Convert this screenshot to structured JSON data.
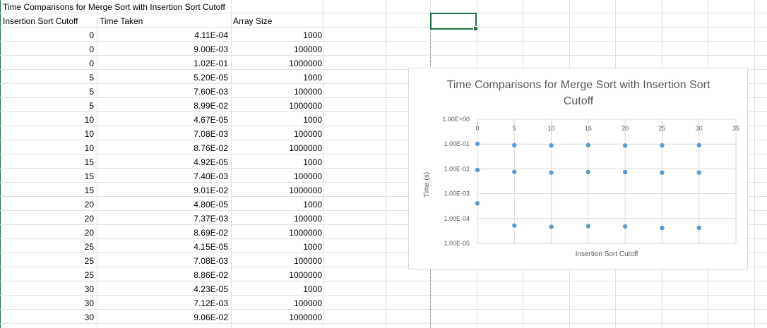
{
  "sheet": {
    "title": "Time Comparisons for Merge Sort with Insertion Sort Cutoff",
    "headers": [
      "Insertion Sort Cutoff",
      "Time Taken",
      "Array Size"
    ],
    "rows": [
      {
        "cutoff": "0",
        "time": "4.11E-04",
        "size": "1000"
      },
      {
        "cutoff": "0",
        "time": "9.00E-03",
        "size": "100000"
      },
      {
        "cutoff": "0",
        "time": "1.02E-01",
        "size": "1000000"
      },
      {
        "cutoff": "5",
        "time": "5.20E-05",
        "size": "1000"
      },
      {
        "cutoff": "5",
        "time": "7.60E-03",
        "size": "100000"
      },
      {
        "cutoff": "5",
        "time": "8.99E-02",
        "size": "1000000"
      },
      {
        "cutoff": "10",
        "time": "4.67E-05",
        "size": "1000"
      },
      {
        "cutoff": "10",
        "time": "7.08E-03",
        "size": "100000"
      },
      {
        "cutoff": "10",
        "time": "8.76E-02",
        "size": "1000000"
      },
      {
        "cutoff": "15",
        "time": "4.92E-05",
        "size": "1000"
      },
      {
        "cutoff": "15",
        "time": "7.40E-03",
        "size": "100000"
      },
      {
        "cutoff": "15",
        "time": "9.01E-02",
        "size": "1000000"
      },
      {
        "cutoff": "20",
        "time": "4.80E-05",
        "size": "1000"
      },
      {
        "cutoff": "20",
        "time": "7.37E-03",
        "size": "100000"
      },
      {
        "cutoff": "20",
        "time": "8.69E-02",
        "size": "1000000"
      },
      {
        "cutoff": "25",
        "time": "4.15E-05",
        "size": "1000"
      },
      {
        "cutoff": "25",
        "time": "7.08E-03",
        "size": "100000"
      },
      {
        "cutoff": "25",
        "time": "8.86E-02",
        "size": "1000000"
      },
      {
        "cutoff": "30",
        "time": "4.23E-05",
        "size": "1000"
      },
      {
        "cutoff": "30",
        "time": "7.12E-03",
        "size": "100000"
      },
      {
        "cutoff": "30",
        "time": "9.06E-02",
        "size": "1000000"
      }
    ]
  },
  "chart_data": {
    "type": "scatter",
    "title": "Time Comparisons for Merge Sort with Insertion Sort Cutoff",
    "xlabel": "Insertion Sort Cutoff",
    "ylabel": "Time (s)",
    "xlim": [
      0,
      35
    ],
    "xticks": [
      "0",
      "5",
      "10",
      "15",
      "20",
      "25",
      "30",
      "35"
    ],
    "yscale": "log",
    "ylim": [
      1e-05,
      1
    ],
    "yticks": [
      "1.00E+00",
      "1.00E-01",
      "1.00E-02",
      "1.00E-03",
      "1.00E-04",
      "1.00E-05"
    ],
    "grid": true,
    "marker_color": "#5b9bd5",
    "points": [
      [
        0,
        0.000411
      ],
      [
        0,
        0.009
      ],
      [
        0,
        0.102
      ],
      [
        5,
        5.2e-05
      ],
      [
        5,
        0.0076
      ],
      [
        5,
        0.0899
      ],
      [
        10,
        4.67e-05
      ],
      [
        10,
        0.00708
      ],
      [
        10,
        0.0876
      ],
      [
        15,
        4.92e-05
      ],
      [
        15,
        0.0074
      ],
      [
        15,
        0.0901
      ],
      [
        20,
        4.8e-05
      ],
      [
        20,
        0.00737
      ],
      [
        20,
        0.0869
      ],
      [
        25,
        4.15e-05
      ],
      [
        25,
        0.00708
      ],
      [
        25,
        0.0886
      ],
      [
        30,
        4.23e-05
      ],
      [
        30,
        0.00712
      ],
      [
        30,
        0.0906
      ]
    ]
  }
}
